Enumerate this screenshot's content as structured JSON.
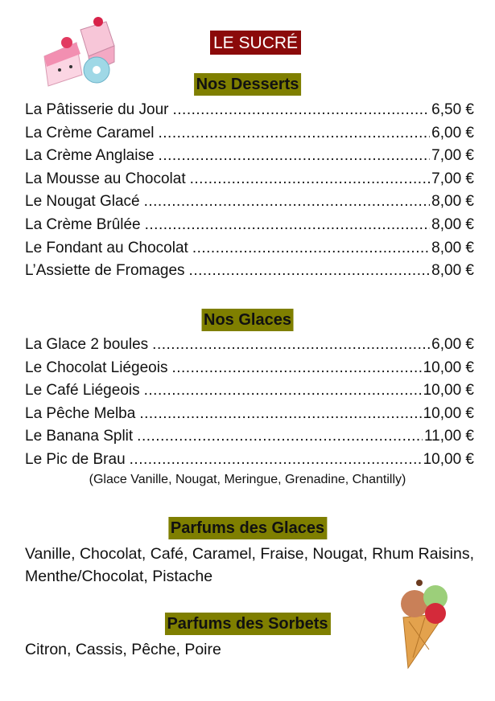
{
  "title": "LE SUCRÉ",
  "desserts": {
    "heading": "Nos Desserts",
    "items": [
      {
        "name": "La Pâtisserie du Jour",
        "price": "6,50 €"
      },
      {
        "name": "La Crème Caramel",
        "price": "6,00 €"
      },
      {
        "name": "La Crème Anglaise",
        "price": "7,00 €"
      },
      {
        "name": "La Mousse au Chocolat",
        "price": "7,00 €"
      },
      {
        "name": "Le Nougat Glacé",
        "price": "8,00 €"
      },
      {
        "name": "La Crème Brûlée",
        "price": "8,00 €"
      },
      {
        "name": "Le Fondant au Chocolat",
        "price": "8,00 €"
      },
      {
        "name": "L’Assiette de Fromages",
        "price": "8,00 €"
      }
    ]
  },
  "glaces": {
    "heading": "Nos Glaces",
    "items": [
      {
        "name": "La Glace 2 boules",
        "price": "6,00 €"
      },
      {
        "name": "Le Chocolat Liégeois",
        "price": "10,00 €"
      },
      {
        "name": "Le Café Liégeois",
        "price": "10,00 €"
      },
      {
        "name": "La Pêche Melba",
        "price": "10,00 €"
      },
      {
        "name": "Le Banana Split",
        "price": "11,00 €"
      },
      {
        "name": "Le Pic de Brau",
        "price": "10,00 €"
      }
    ],
    "note": "(Glace Vanille, Nougat, Meringue, Grenadine, Chantilly)"
  },
  "parfums_glaces": {
    "heading": "Parfums des Glaces",
    "text": "Vanille, Chocolat, Café, Caramel, Fraise, Nougat, Rhum Raisins, Menthe/Chocolat, Pistache"
  },
  "parfums_sorbets": {
    "heading": "Parfums des Sorbets",
    "text": "Citron, Cassis, Pêche, Poire"
  },
  "colors": {
    "title_bg": "#8b0a0a",
    "heading_bg": "#7f7f00"
  },
  "images": [
    "cakes-illustration",
    "ice-cream-cone-illustration"
  ]
}
